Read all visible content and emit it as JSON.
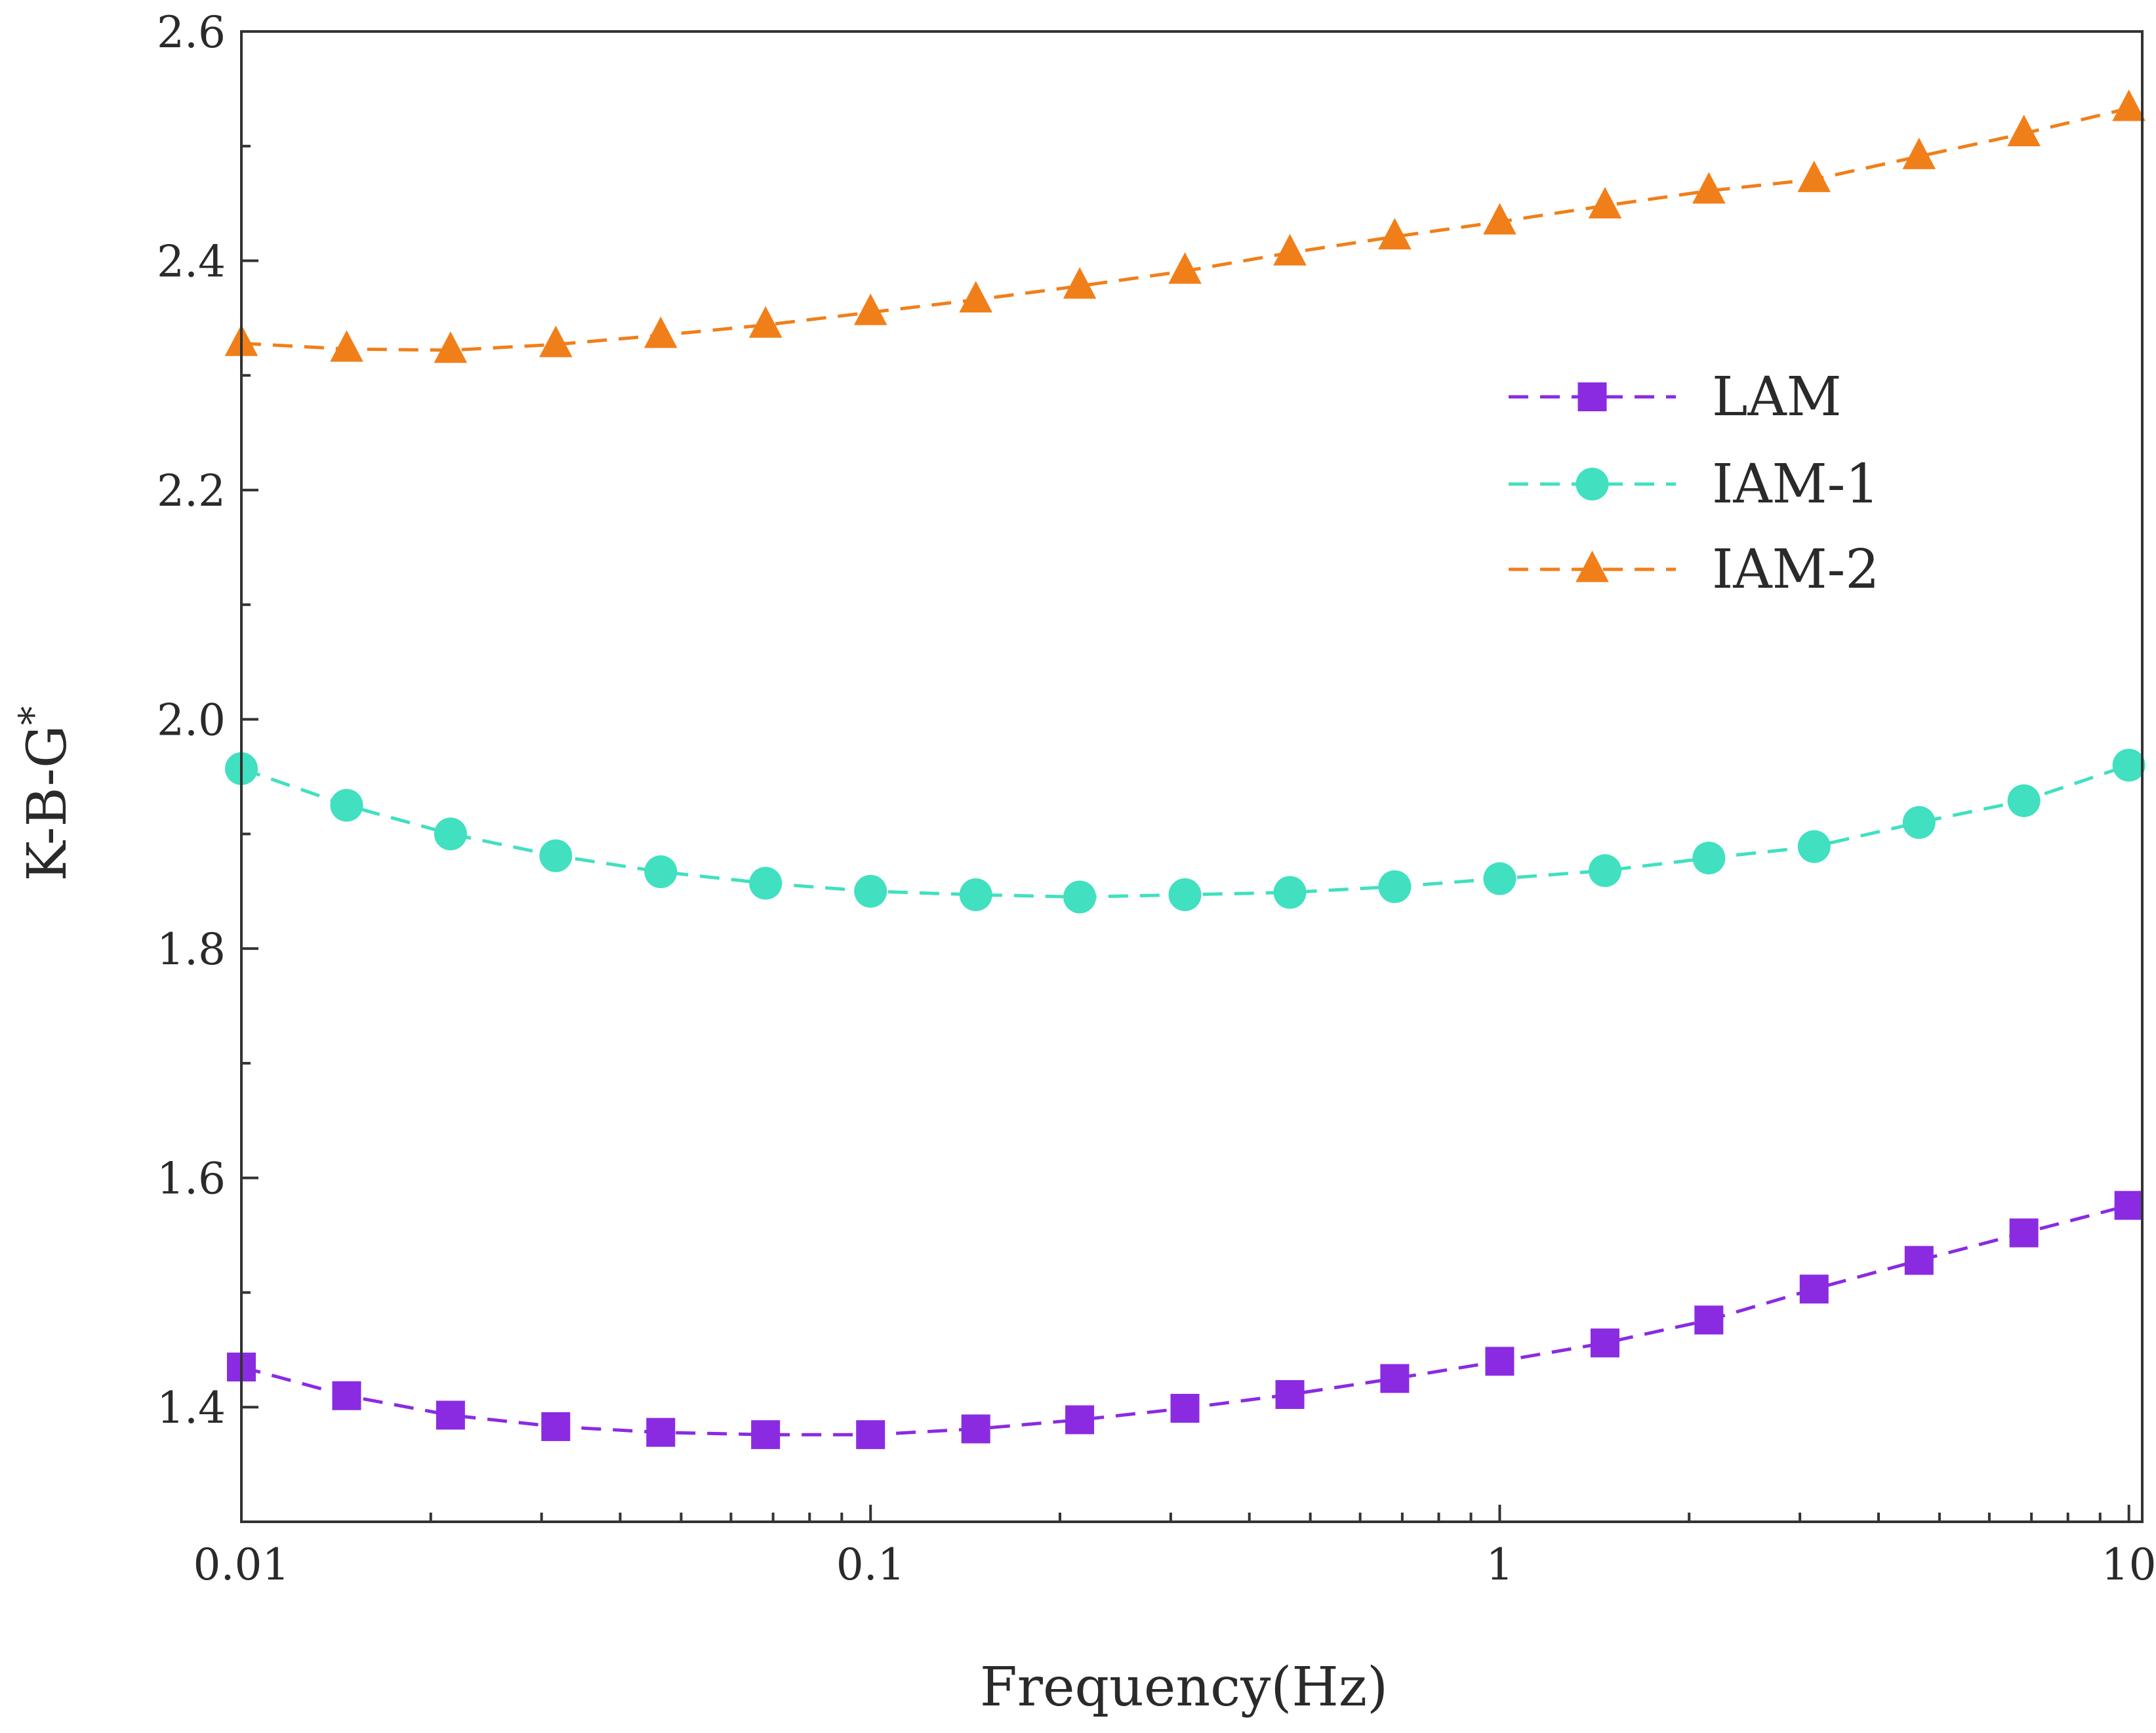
{
  "chart_data": {
    "type": "line",
    "title": "",
    "xlabel": "Frequency(Hz)",
    "ylabel": "K-B-G",
    "ylabel_superscript": "*",
    "xscale": "log",
    "xlim": [
      0.01,
      10.5
    ],
    "ylim": [
      1.3,
      2.6
    ],
    "xticks": [
      {
        "value": 0.01,
        "label": "0.01"
      },
      {
        "value": 0.1,
        "label": "0.1"
      },
      {
        "value": 1,
        "label": "1"
      },
      {
        "value": 10,
        "label": "10"
      }
    ],
    "yticks": [
      {
        "value": 1.4,
        "label": "1.4"
      },
      {
        "value": 1.6,
        "label": "1.6"
      },
      {
        "value": 1.8,
        "label": "1.8"
      },
      {
        "value": 2.0,
        "label": "2.0"
      },
      {
        "value": 2.2,
        "label": "2.2"
      },
      {
        "value": 2.4,
        "label": "2.4"
      },
      {
        "value": 2.6,
        "label": "2.6"
      }
    ],
    "legend_position": "top-right",
    "x": [
      0.01,
      0.0147,
      0.0215,
      0.0316,
      0.0464,
      0.0681,
      0.1,
      0.147,
      0.215,
      0.316,
      0.464,
      0.681,
      1,
      1.47,
      2.15,
      3.16,
      4.64,
      6.81,
      10
    ],
    "series": [
      {
        "name": "LAM",
        "color": "#8a2be2",
        "marker": "square",
        "values": [
          1.435,
          1.41,
          1.393,
          1.383,
          1.378,
          1.376,
          1.376,
          1.381,
          1.389,
          1.399,
          1.411,
          1.425,
          1.44,
          1.456,
          1.476,
          1.503,
          1.528,
          1.552,
          1.576
        ]
      },
      {
        "name": "IAM-1",
        "color": "#40e0c0",
        "marker": "circle",
        "values": [
          1.957,
          1.925,
          1.9,
          1.881,
          1.867,
          1.857,
          1.85,
          1.847,
          1.845,
          1.847,
          1.849,
          1.854,
          1.861,
          1.868,
          1.879,
          1.889,
          1.91,
          1.929,
          1.96
        ]
      },
      {
        "name": "IAM-2",
        "color": "#f07f1a",
        "marker": "triangle",
        "values": [
          2.328,
          2.323,
          2.322,
          2.327,
          2.335,
          2.344,
          2.355,
          2.366,
          2.378,
          2.391,
          2.407,
          2.421,
          2.434,
          2.448,
          2.461,
          2.471,
          2.491,
          2.511,
          2.533
        ]
      }
    ]
  }
}
